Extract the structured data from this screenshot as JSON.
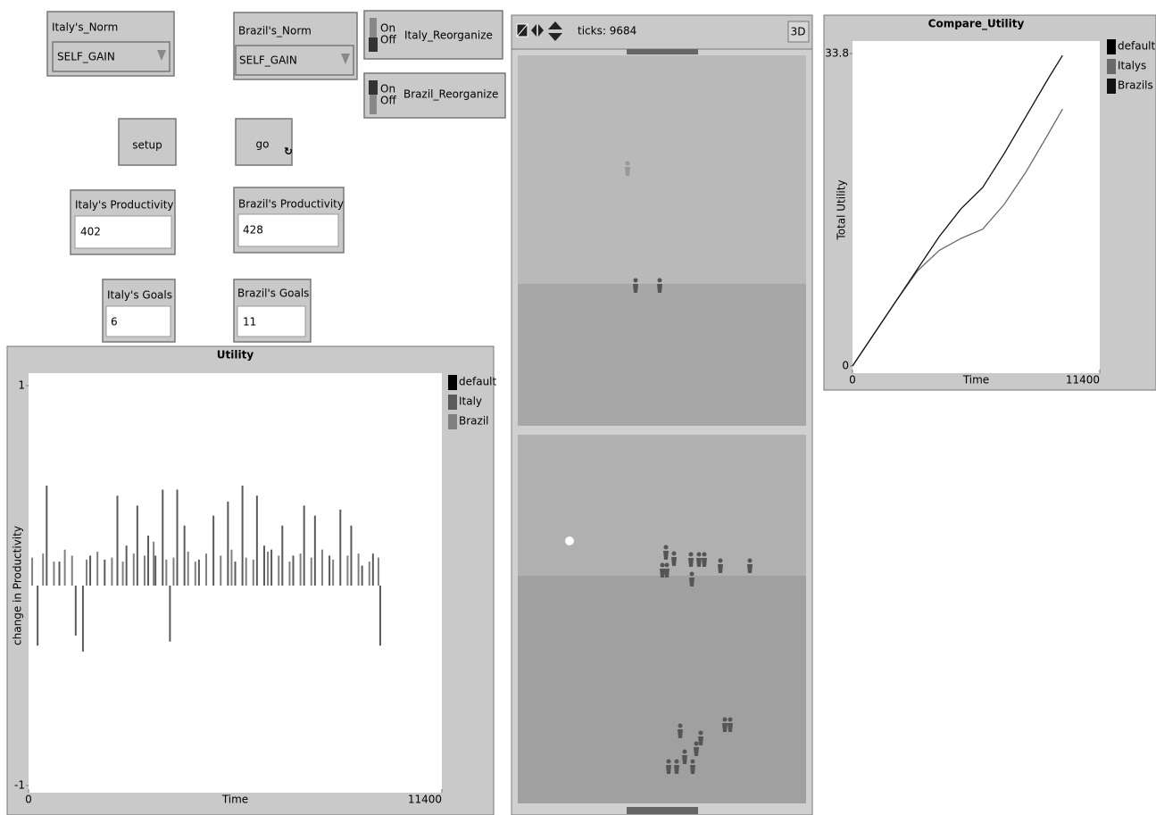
{
  "widgets": {
    "italy_norm": {
      "label": "Italy's_Norm",
      "value": "SELF_GAIN"
    },
    "brazil_norm": {
      "label": "Brazil's_Norm",
      "value": "SELF_GAIN"
    },
    "italy_reorganize": {
      "on": "On",
      "off": "Off",
      "label": "Italy_Reorganize"
    },
    "brazil_reorganize": {
      "on": "On",
      "off": "Off",
      "label": "Brazil_Reorganize"
    },
    "setup": "setup",
    "go": "go",
    "italy_productivity": {
      "label": "Italy's Productivity",
      "value": 402
    },
    "brazil_productivity": {
      "label": "Brazil's Productivity",
      "value": 428
    },
    "italy_goals": {
      "label": "Italy's Goals",
      "value": 6
    },
    "brazil_goals": {
      "label": "Brazil's Goals",
      "value": 11
    }
  },
  "view": {
    "ticks": "ticks: 9684",
    "button_3d": "3D"
  },
  "plots": [
    {
      "type": "bar",
      "title": "Utility",
      "x_label": "Time",
      "y_label": "change in Productivity",
      "xlim": [
        0,
        11400
      ],
      "ylim": [
        -1,
        1
      ],
      "xticks": [
        0,
        11400
      ],
      "yticks": [
        -1,
        1
      ],
      "series": [
        {
          "name": "default",
          "color": "#000000",
          "x": [],
          "values": []
        },
        {
          "name": "Italy",
          "color": "#5a5a5a",
          "x": [
            250,
            500,
            850,
            1300,
            1500,
            1700,
            2100,
            2450,
            2700,
            3000,
            3300,
            3500,
            3700,
            3900,
            4100,
            4300,
            4700,
            5100,
            5500,
            5700,
            5900,
            6300,
            6500,
            6700,
            7000,
            7300,
            7600,
            7900,
            8300,
            8600,
            8900,
            9200,
            9500,
            9700
          ],
          "values": [
            -0.3,
            0.5,
            0.12,
            -0.25,
            -0.33,
            0.15,
            0.13,
            0.45,
            0.2,
            0.4,
            0.25,
            0.15,
            0.48,
            -0.28,
            0.48,
            0.3,
            0.13,
            0.35,
            0.42,
            0.12,
            0.5,
            0.45,
            0.2,
            0.18,
            0.3,
            0.15,
            0.4,
            0.35,
            0.15,
            0.38,
            0.3,
            0.1,
            0.16,
            -0.3
          ]
        },
        {
          "name": "Brazil",
          "color": "#808080",
          "x": [
            100,
            400,
            700,
            1000,
            1200,
            1600,
            1900,
            2300,
            2600,
            2900,
            3200,
            3450,
            3800,
            4000,
            4400,
            4600,
            4900,
            5300,
            5600,
            6000,
            6200,
            6600,
            6900,
            7200,
            7500,
            7800,
            8100,
            8400,
            8800,
            9100,
            9400,
            9650
          ],
          "values": [
            0.14,
            0.16,
            0.12,
            0.18,
            0.15,
            0.13,
            0.17,
            0.14,
            0.12,
            0.16,
            0.15,
            0.22,
            0.13,
            0.14,
            0.17,
            0.12,
            0.16,
            0.15,
            0.18,
            0.14,
            0.13,
            0.17,
            0.15,
            0.12,
            0.16,
            0.14,
            0.18,
            0.13,
            0.15,
            0.16,
            0.12,
            0.14
          ]
        }
      ]
    },
    {
      "type": "line",
      "title": "Compare_Utility",
      "x_label": "Time",
      "y_label": "Total Utility",
      "xlim": [
        0,
        11400
      ],
      "ylim": [
        0,
        33.8
      ],
      "xticks": [
        0,
        11400
      ],
      "yticks": [
        0,
        33.8
      ],
      "series": [
        {
          "name": "default",
          "color": "#000000",
          "x": [],
          "values": []
        },
        {
          "name": "Italys",
          "color": "#6a6a6a",
          "x": [
            0,
            1000,
            2000,
            3000,
            4000,
            5000,
            6000,
            7000,
            8000,
            9000,
            9684
          ],
          "values": [
            0,
            3.5,
            7,
            10.3,
            12.5,
            13.8,
            14.8,
            17.5,
            21,
            25,
            27.8
          ]
        },
        {
          "name": "Brazils",
          "color": "#111111",
          "x": [
            0,
            1000,
            2000,
            3000,
            4000,
            5000,
            6000,
            7000,
            8000,
            9000,
            9684
          ],
          "values": [
            0,
            3.5,
            7,
            10.5,
            14,
            17,
            19.3,
            23,
            27,
            31,
            33.6
          ]
        }
      ]
    }
  ]
}
